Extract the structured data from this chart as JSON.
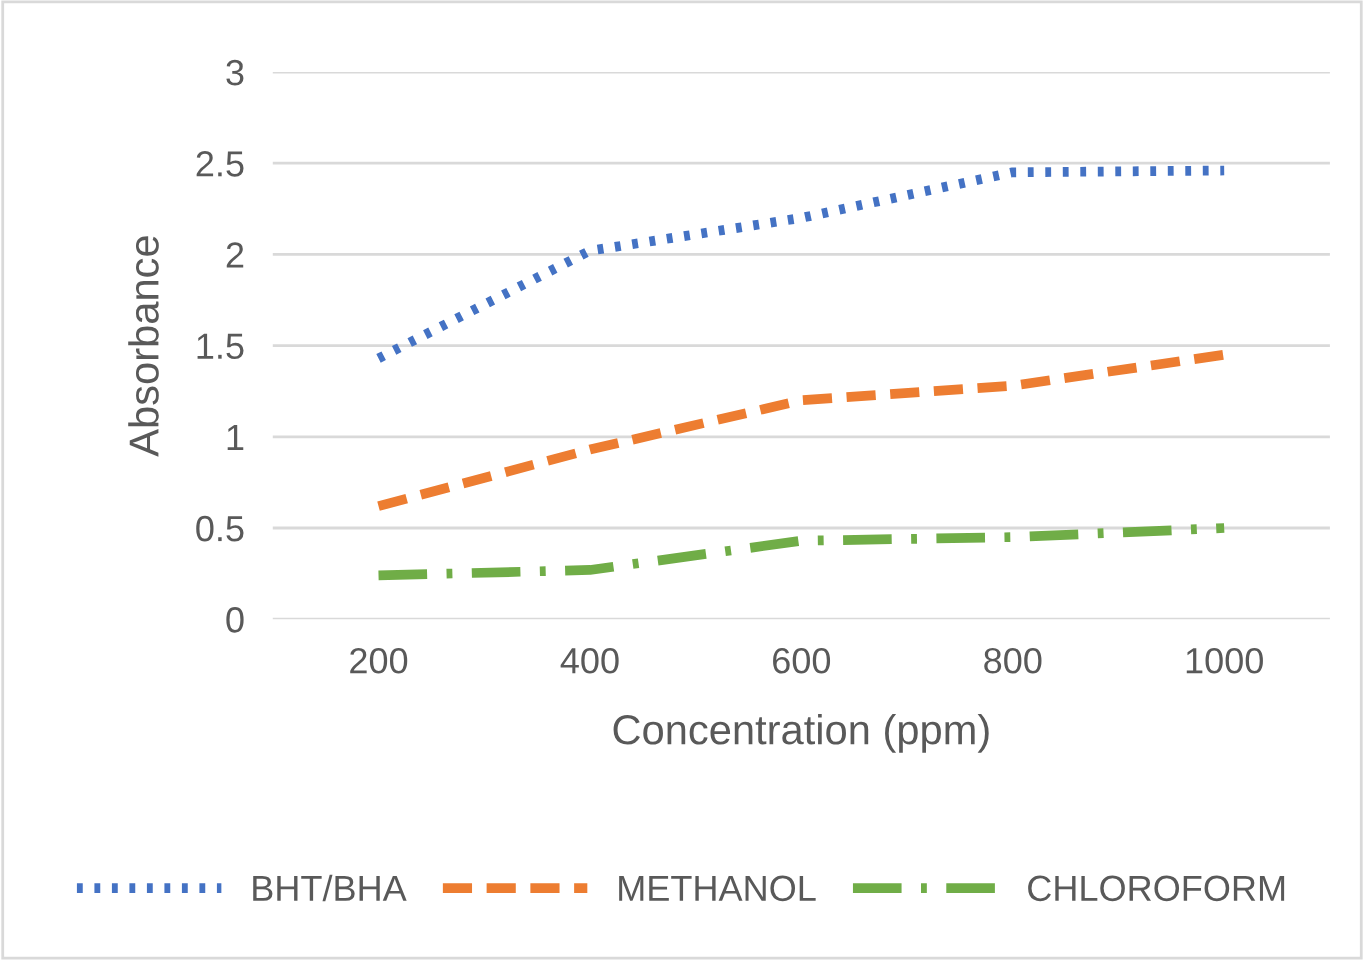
{
  "chart_data": {
    "type": "line",
    "xlabel": "Concentration (ppm)",
    "ylabel": "Absorbance",
    "x": [
      200,
      400,
      600,
      800,
      1000
    ],
    "series": [
      {
        "name": "BHT/BHA",
        "color": "#4472c4",
        "line_style": "dotted",
        "values": [
          1.43,
          2.02,
          2.2,
          2.45,
          2.46
        ]
      },
      {
        "name": "METHANOL",
        "color": "#ed7d31",
        "line_style": "dashed",
        "values": [
          0.62,
          0.93,
          1.2,
          1.28,
          1.45
        ]
      },
      {
        "name": "CHLOROFORM",
        "color": "#70ad47",
        "line_style": "dashdot",
        "values": [
          0.24,
          0.27,
          0.43,
          0.45,
          0.5
        ]
      }
    ],
    "xlim": [
      100,
      1100
    ],
    "xticks": [
      200,
      400,
      600,
      800,
      1000
    ],
    "ylim": [
      0,
      3
    ],
    "yticks": [
      0,
      0.5,
      1,
      1.5,
      2,
      2.5,
      3
    ],
    "grid": "y",
    "legend": "bottom",
    "marker": "none"
  }
}
